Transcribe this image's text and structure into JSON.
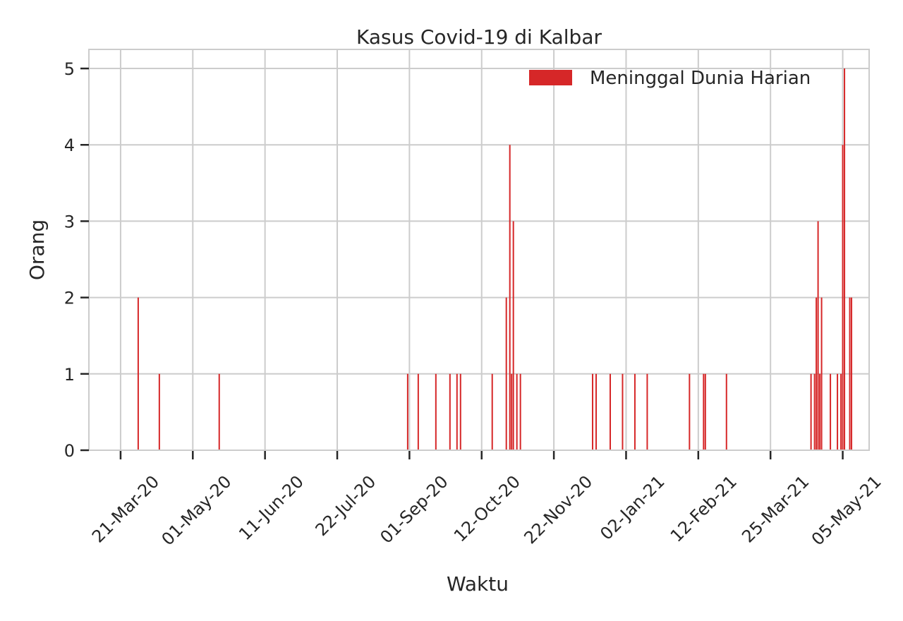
{
  "chart_data": {
    "type": "bar",
    "title": "Kasus Covid-19 di Kalbar",
    "xlabel": "Waktu",
    "ylabel": "Orang",
    "x_type": "date",
    "xlim": [
      "2020-03-03",
      "2021-05-20"
    ],
    "ylim": [
      0,
      5.25
    ],
    "yticks": [
      0,
      1,
      2,
      3,
      4,
      5
    ],
    "xticks": [
      {
        "date": "2020-03-21",
        "label": "21-Mar-20"
      },
      {
        "date": "2020-05-01",
        "label": "01-May-20"
      },
      {
        "date": "2020-06-11",
        "label": "11-Jun-20"
      },
      {
        "date": "2020-07-22",
        "label": "22-Jul-20"
      },
      {
        "date": "2020-09-01",
        "label": "01-Sep-20"
      },
      {
        "date": "2020-10-12",
        "label": "12-Oct-20"
      },
      {
        "date": "2020-11-22",
        "label": "22-Nov-20"
      },
      {
        "date": "2021-01-02",
        "label": "02-Jan-21"
      },
      {
        "date": "2021-02-12",
        "label": "12-Feb-21"
      },
      {
        "date": "2021-03-25",
        "label": "25-Mar-21"
      },
      {
        "date": "2021-05-05",
        "label": "05-May-21"
      }
    ],
    "grid": true,
    "legend_position": "top-right",
    "series": [
      {
        "name": "Meninggal Dunia Harian",
        "color": "#d62728",
        "points": [
          {
            "x": "2020-03-31",
            "y": 2
          },
          {
            "x": "2020-04-12",
            "y": 1
          },
          {
            "x": "2020-05-16",
            "y": 1
          },
          {
            "x": "2020-08-31",
            "y": 1
          },
          {
            "x": "2020-09-06",
            "y": 1
          },
          {
            "x": "2020-09-16",
            "y": 1
          },
          {
            "x": "2020-09-24",
            "y": 1
          },
          {
            "x": "2020-09-28",
            "y": 1
          },
          {
            "x": "2020-09-30",
            "y": 1
          },
          {
            "x": "2020-10-18",
            "y": 1
          },
          {
            "x": "2020-10-26",
            "y": 2
          },
          {
            "x": "2020-10-28",
            "y": 4
          },
          {
            "x": "2020-10-29",
            "y": 1
          },
          {
            "x": "2020-10-30",
            "y": 3
          },
          {
            "x": "2020-11-01",
            "y": 1
          },
          {
            "x": "2020-11-03",
            "y": 1
          },
          {
            "x": "2020-12-14",
            "y": 1
          },
          {
            "x": "2020-12-16",
            "y": 1
          },
          {
            "x": "2020-12-24",
            "y": 1
          },
          {
            "x": "2020-12-31",
            "y": 1
          },
          {
            "x": "2021-01-07",
            "y": 1
          },
          {
            "x": "2021-01-14",
            "y": 1
          },
          {
            "x": "2021-02-07",
            "y": 1
          },
          {
            "x": "2021-02-15",
            "y": 1
          },
          {
            "x": "2021-02-16",
            "y": 1
          },
          {
            "x": "2021-02-28",
            "y": 1
          },
          {
            "x": "2021-04-17",
            "y": 1
          },
          {
            "x": "2021-04-19",
            "y": 1
          },
          {
            "x": "2021-04-20",
            "y": 2
          },
          {
            "x": "2021-04-21",
            "y": 3
          },
          {
            "x": "2021-04-22",
            "y": 1
          },
          {
            "x": "2021-04-23",
            "y": 2
          },
          {
            "x": "2021-04-28",
            "y": 1
          },
          {
            "x": "2021-05-02",
            "y": 1
          },
          {
            "x": "2021-05-04",
            "y": 1
          },
          {
            "x": "2021-05-05",
            "y": 4
          },
          {
            "x": "2021-05-06",
            "y": 5
          },
          {
            "x": "2021-05-09",
            "y": 2
          },
          {
            "x": "2021-05-10",
            "y": 2
          }
        ]
      }
    ]
  }
}
